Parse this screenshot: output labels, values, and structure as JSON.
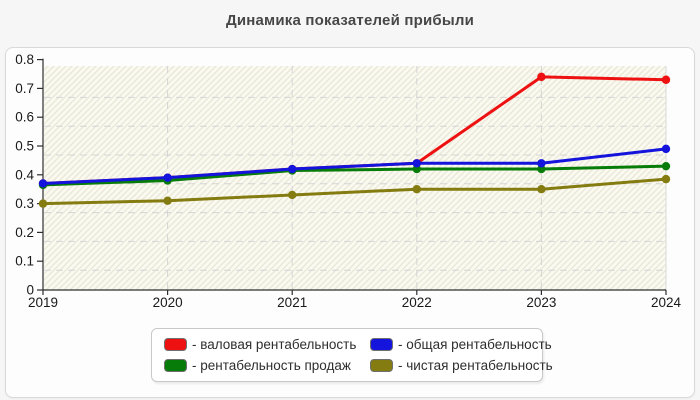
{
  "page": {
    "title": "Динамика показателей прибыли"
  },
  "chart_data": {
    "type": "line",
    "title": "Динамика показателей прибыли",
    "x": [
      "2019",
      "2020",
      "2021",
      "2022",
      "2023",
      "2024"
    ],
    "xlabel": "",
    "ylabel": "",
    "ylim": [
      0,
      0.8
    ],
    "yticks": [
      0,
      0.1,
      0.2,
      0.3,
      0.4,
      0.5,
      0.6,
      0.7,
      0.8
    ],
    "ytick_labels": [
      "0",
      "0.1",
      "0.2",
      "0.3",
      "0.4",
      "0.5",
      "0.6",
      "0.7",
      "0.8"
    ],
    "grid": "dashed",
    "plot_background": "hatched-cream",
    "legend_position": "bottom",
    "series": [
      {
        "name": "валовая рентабельность",
        "color": "#ed1111",
        "values": [
          0.37,
          0.39,
          0.42,
          0.44,
          0.74,
          0.73
        ]
      },
      {
        "name": "рентабельность продаж",
        "color": "#087c08",
        "values": [
          0.365,
          0.38,
          0.415,
          0.42,
          0.42,
          0.43
        ]
      },
      {
        "name": "чистая рентабельность",
        "color": "#847c10",
        "values": [
          0.3,
          0.31,
          0.33,
          0.35,
          0.35,
          0.385
        ]
      },
      {
        "name": "общая рентабельность",
        "color": "#1414dd",
        "values": [
          0.37,
          0.39,
          0.42,
          0.44,
          0.44,
          0.49
        ]
      }
    ]
  },
  "legend": {
    "items": [
      {
        "label": "- валовая рентабельность",
        "color": "#ed1111"
      },
      {
        "label": "- общая рентабельность",
        "color": "#1414dd"
      },
      {
        "label": "- рентабельность продаж",
        "color": "#087c08"
      },
      {
        "label": "- чистая рентабельность",
        "color": "#847c10"
      }
    ]
  },
  "colors": {
    "page_background": "#f6f6f6",
    "panel_background": "#fdfdfd",
    "panel_border": "#d9d9d9",
    "hatch_fill": "#fbfaf0",
    "hatch_line": "#eae8d9",
    "gridline": "#d4d4d4",
    "axis": "#2e2e2e",
    "title_text": "#474747",
    "tick_text": "#1a1a1a"
  }
}
